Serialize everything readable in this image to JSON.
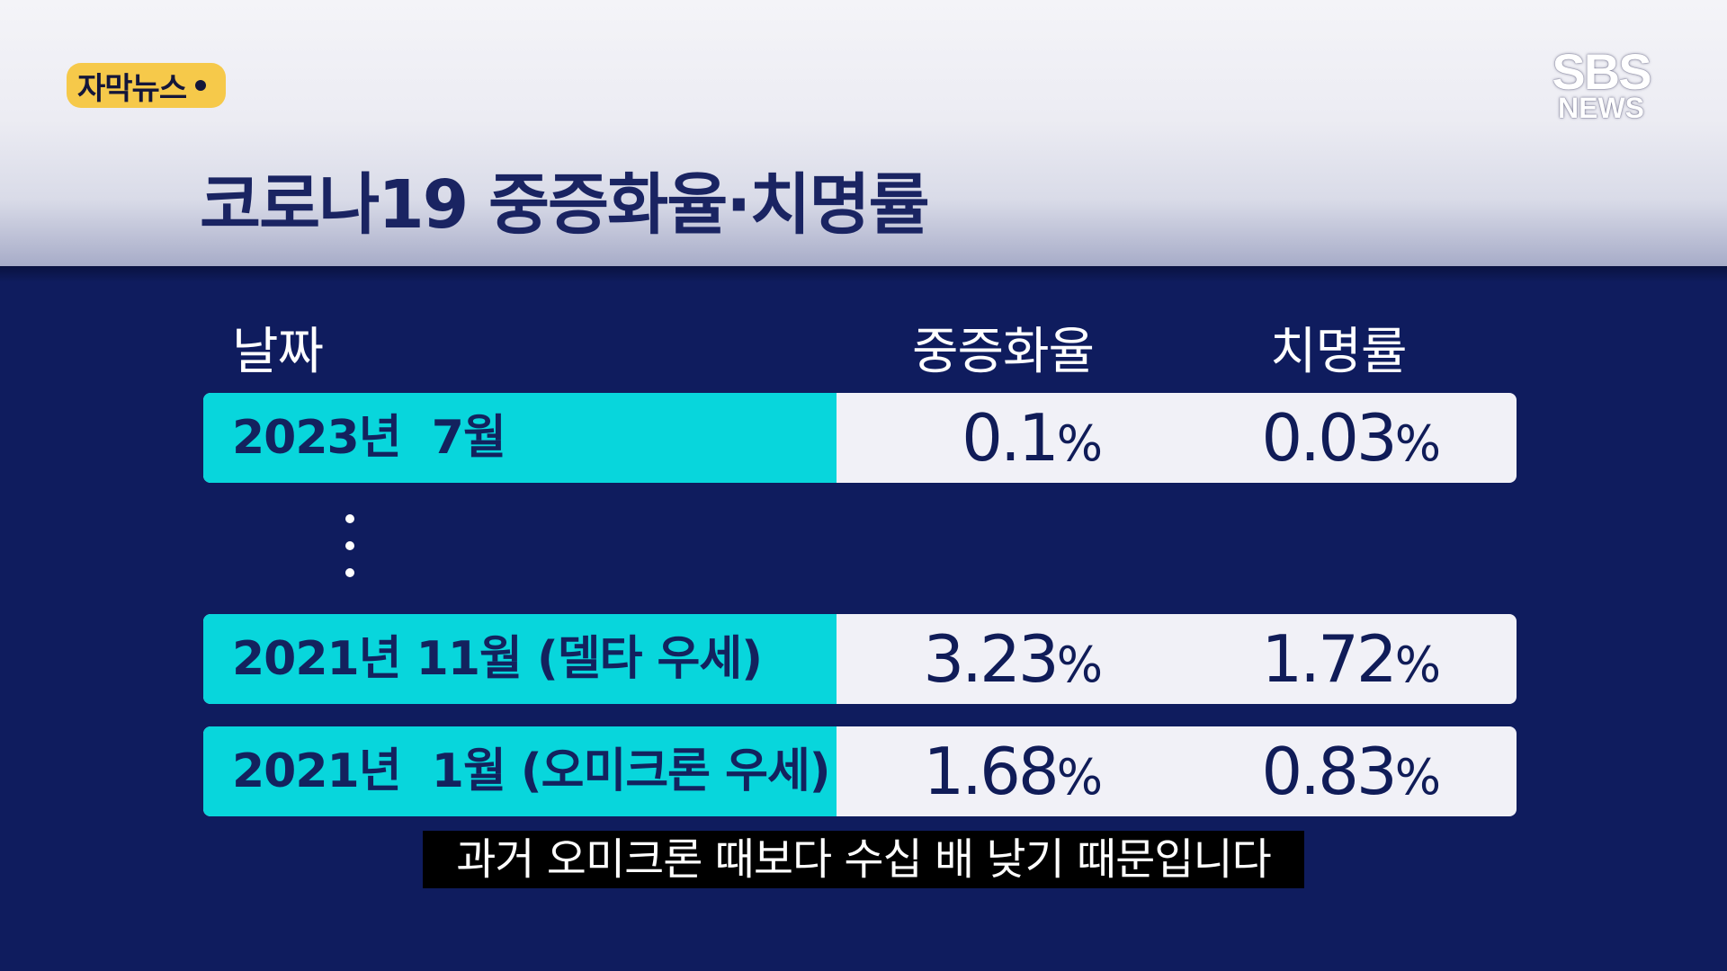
{
  "badge": {
    "label": "자막뉴스"
  },
  "logo": {
    "top": "SBS",
    "bottom": "NEWS"
  },
  "title": "코로나19 중증화율·치명률",
  "table": {
    "headers": {
      "date": "날짜",
      "severe": "중증화율",
      "fatal": "치명률"
    },
    "rows": [
      {
        "date": "2023년  7월",
        "severe": "0.1",
        "fatal": "0.03"
      },
      {
        "date": "2021년 11월 (델타 우세)",
        "severe": "3.23",
        "fatal": "1.72"
      },
      {
        "date": "2021년  1월 (오미크론 우세)",
        "severe": "1.68",
        "fatal": "0.83"
      }
    ],
    "percent_sign": "%"
  },
  "subtitle": "과거 오미크론 때보다 수십 배 낮기 때문입니다",
  "colors": {
    "background": "#0f1c5e",
    "accent_cyan": "#08d6dc",
    "badge_yellow": "#f6c94a",
    "title_navy": "#1a2462"
  }
}
